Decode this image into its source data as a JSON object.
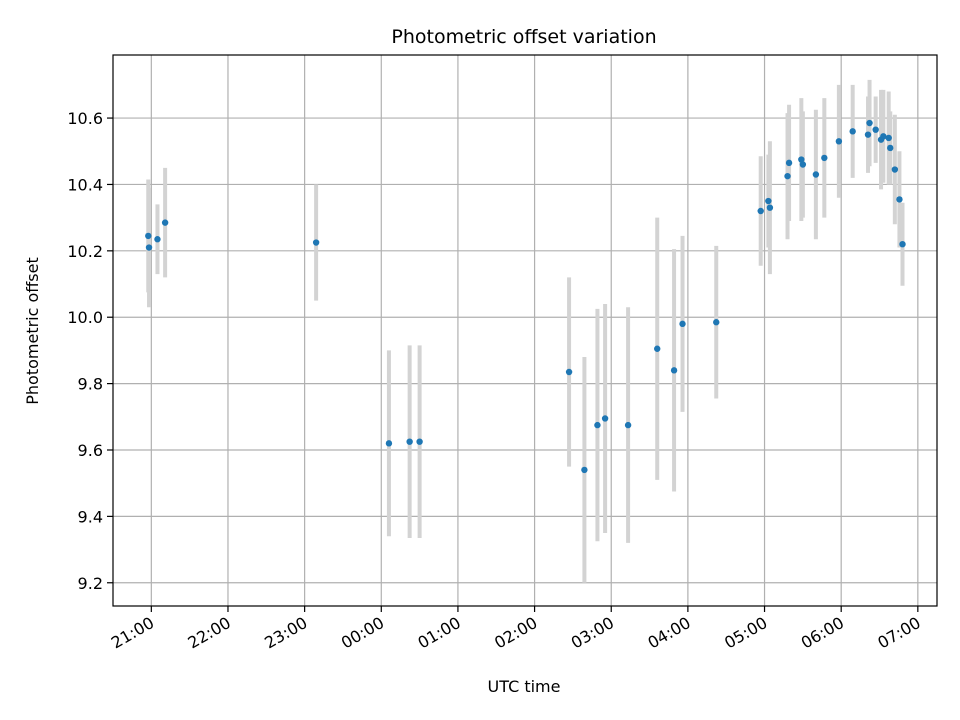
{
  "chart_data": {
    "type": "scatter",
    "title": "Photometric offset variation",
    "xlabel": "UTC time",
    "ylabel": "Photometric offset",
    "x_unit": "hours since 21:00 UTC",
    "xlim": [
      -0.5,
      10.25
    ],
    "ylim": [
      9.13,
      10.79
    ],
    "grid": true,
    "x_ticks": [
      {
        "value": 0,
        "label": "21:00"
      },
      {
        "value": 1,
        "label": "22:00"
      },
      {
        "value": 2,
        "label": "23:00"
      },
      {
        "value": 3,
        "label": "00:00"
      },
      {
        "value": 4,
        "label": "01:00"
      },
      {
        "value": 5,
        "label": "02:00"
      },
      {
        "value": 6,
        "label": "03:00"
      },
      {
        "value": 7,
        "label": "04:00"
      },
      {
        "value": 8,
        "label": "05:00"
      },
      {
        "value": 9,
        "label": "06:00"
      },
      {
        "value": 10,
        "label": "07:00"
      }
    ],
    "y_ticks": [
      {
        "value": 9.2,
        "label": "9.2"
      },
      {
        "value": 9.4,
        "label": "9.4"
      },
      {
        "value": 9.6,
        "label": "9.6"
      },
      {
        "value": 9.8,
        "label": "9.8"
      },
      {
        "value": 10.0,
        "label": "10.0"
      },
      {
        "value": 10.2,
        "label": "10.2"
      },
      {
        "value": 10.4,
        "label": "10.4"
      },
      {
        "value": 10.6,
        "label": "10.6"
      }
    ],
    "colors": {
      "point": "#1f77b4",
      "errorbar": "#d3d3d3",
      "grid": "#b0b0b0"
    },
    "points": [
      {
        "x": -0.04,
        "y": 10.245,
        "err": 0.17
      },
      {
        "x": -0.03,
        "y": 10.21,
        "err": 0.18
      },
      {
        "x": 0.08,
        "y": 10.235,
        "err": 0.105
      },
      {
        "x": 0.18,
        "y": 10.285,
        "err": 0.165
      },
      {
        "x": 2.15,
        "y": 10.225,
        "err": 0.175
      },
      {
        "x": 3.1,
        "y": 9.62,
        "err": 0.28
      },
      {
        "x": 3.37,
        "y": 9.625,
        "err": 0.29
      },
      {
        "x": 3.5,
        "y": 9.625,
        "err": 0.29
      },
      {
        "x": 5.45,
        "y": 9.835,
        "err": 0.285
      },
      {
        "x": 5.65,
        "y": 9.54,
        "err": 0.34
      },
      {
        "x": 5.82,
        "y": 9.675,
        "err": 0.35
      },
      {
        "x": 5.92,
        "y": 9.695,
        "err": 0.345
      },
      {
        "x": 6.22,
        "y": 9.675,
        "err": 0.355
      },
      {
        "x": 6.6,
        "y": 9.905,
        "err": 0.395
      },
      {
        "x": 6.82,
        "y": 9.84,
        "err": 0.365
      },
      {
        "x": 6.93,
        "y": 9.98,
        "err": 0.265
      },
      {
        "x": 7.37,
        "y": 9.985,
        "err": 0.23
      },
      {
        "x": 7.95,
        "y": 10.32,
        "err": 0.165
      },
      {
        "x": 8.05,
        "y": 10.35,
        "err": 0.14
      },
      {
        "x": 8.07,
        "y": 10.33,
        "err": 0.2
      },
      {
        "x": 8.3,
        "y": 10.425,
        "err": 0.19
      },
      {
        "x": 8.32,
        "y": 10.465,
        "err": 0.175
      },
      {
        "x": 8.48,
        "y": 10.475,
        "err": 0.185
      },
      {
        "x": 8.5,
        "y": 10.46,
        "err": 0.16
      },
      {
        "x": 8.67,
        "y": 10.43,
        "err": 0.195
      },
      {
        "x": 8.78,
        "y": 10.48,
        "err": 0.18
      },
      {
        "x": 8.97,
        "y": 10.53,
        "err": 0.17
      },
      {
        "x": 9.15,
        "y": 10.56,
        "err": 0.14
      },
      {
        "x": 9.35,
        "y": 10.55,
        "err": 0.115
      },
      {
        "x": 9.37,
        "y": 10.585,
        "err": 0.13
      },
      {
        "x": 9.45,
        "y": 10.565,
        "err": 0.1
      },
      {
        "x": 9.52,
        "y": 10.535,
        "err": 0.15
      },
      {
        "x": 9.55,
        "y": 10.545,
        "err": 0.14
      },
      {
        "x": 9.62,
        "y": 10.54,
        "err": 0.14
      },
      {
        "x": 9.64,
        "y": 10.51,
        "err": 0.11
      },
      {
        "x": 9.7,
        "y": 10.445,
        "err": 0.165
      },
      {
        "x": 9.76,
        "y": 10.355,
        "err": 0.145
      },
      {
        "x": 9.8,
        "y": 10.22,
        "err": 0.125
      }
    ]
  }
}
